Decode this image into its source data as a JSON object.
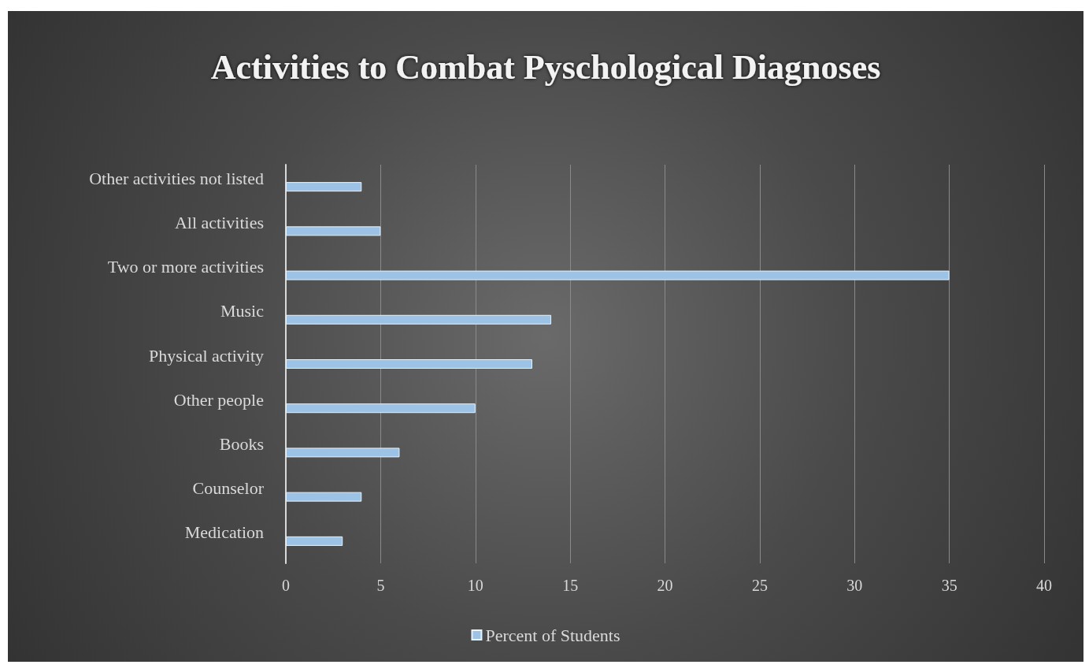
{
  "chart_data": {
    "type": "bar",
    "orientation": "horizontal",
    "title": "Activities to Combat Pyschological Diagnoses",
    "categories": [
      "Other activities not listed",
      "All activities",
      "Two or more activities",
      "Music",
      "Physical activity",
      "Other people",
      "Books",
      "Counselor",
      "Medication"
    ],
    "series": [
      {
        "name": "Percent of Students",
        "color": "#9cc3e6",
        "values": [
          4,
          5,
          35,
          14,
          13,
          10,
          6,
          4,
          3
        ]
      }
    ],
    "xlim": [
      0,
      40
    ],
    "xticks": [
      0,
      5,
      10,
      15,
      20,
      25,
      30,
      35,
      40
    ],
    "grid": "x",
    "legend": "bottom"
  }
}
